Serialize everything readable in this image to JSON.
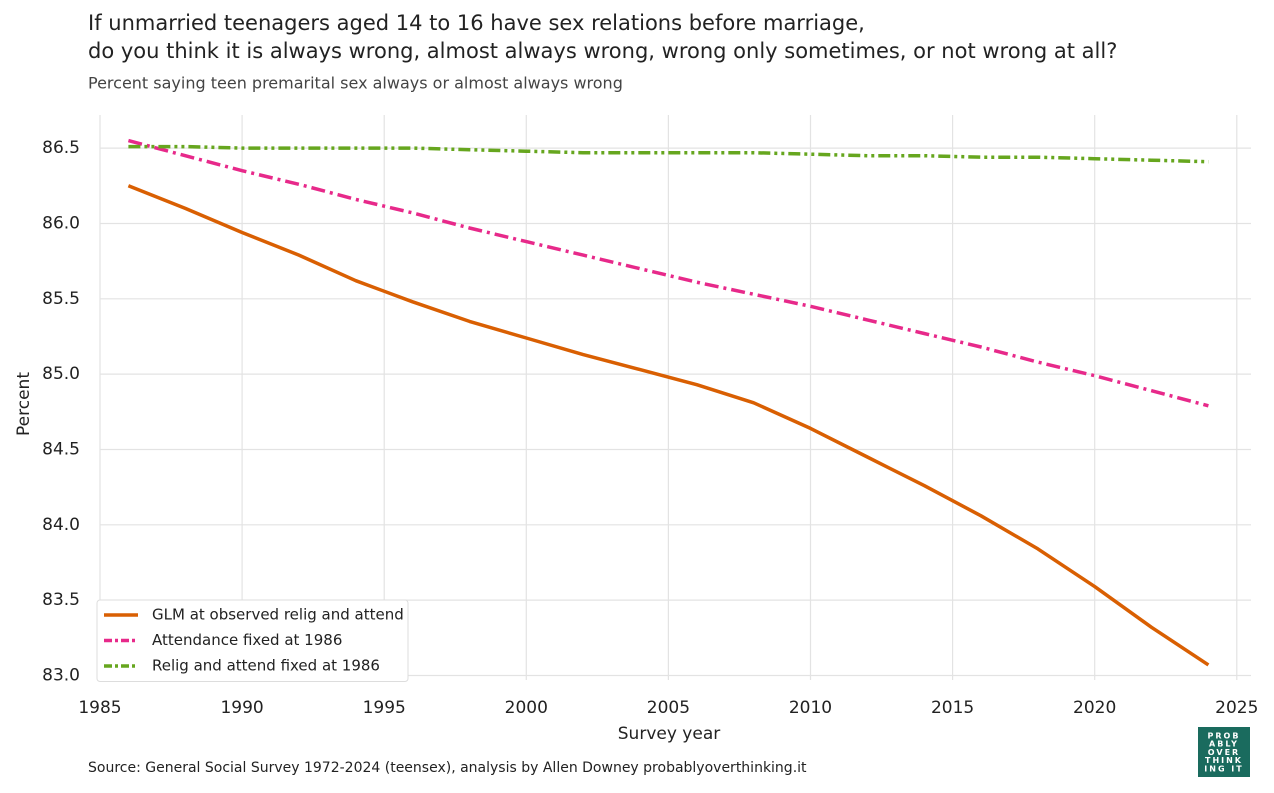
{
  "chart_data": {
    "type": "line",
    "title_lines": [
      "If unmarried teenagers aged 14 to 16 have sex relations before marriage,",
      "do you think it is always wrong, almost always wrong, wrong only sometimes, or not wrong at all?"
    ],
    "subtitle": "Percent saying teen premarital sex always or almost always wrong",
    "x_label": "Survey year",
    "y_label": "Percent",
    "source": "Source: General Social Survey 1972-2024 (teensex), analysis by Allen Downey probablyoverthinking.it",
    "logo_lines": [
      "PROB",
      "ABLY",
      "OVER",
      "THINK",
      "ING IT"
    ],
    "x": [
      1986,
      1988,
      1990,
      1992,
      1994,
      1996,
      1998,
      2000,
      2002,
      2004,
      2006,
      2008,
      2010,
      2012,
      2014,
      2016,
      2018,
      2020,
      2022,
      2024
    ],
    "series": [
      {
        "name": "GLM at observed relig and attend",
        "color": "#d95f02",
        "dash": "solid",
        "values": [
          86.25,
          86.1,
          85.94,
          85.79,
          85.62,
          85.48,
          85.35,
          85.24,
          85.13,
          85.03,
          84.93,
          84.81,
          84.64,
          84.45,
          84.26,
          84.06,
          83.84,
          83.59,
          83.32,
          83.07
        ]
      },
      {
        "name": "Attendance fixed at 1986",
        "color": "#e7298a",
        "dash": "dashdot",
        "values": [
          86.55,
          86.45,
          86.35,
          86.26,
          86.16,
          86.07,
          85.97,
          85.88,
          85.79,
          85.7,
          85.61,
          85.53,
          85.45,
          85.36,
          85.27,
          85.18,
          85.08,
          84.99,
          84.89,
          84.79
        ]
      },
      {
        "name": "Relig and attend fixed at 1986",
        "color": "#66a61e",
        "dash": "dashdotdot",
        "values": [
          86.51,
          86.51,
          86.5,
          86.5,
          86.5,
          86.5,
          86.49,
          86.48,
          86.47,
          86.47,
          86.47,
          86.47,
          86.46,
          86.45,
          86.45,
          86.44,
          86.44,
          86.43,
          86.42,
          86.41
        ]
      }
    ],
    "xlim": [
      1985,
      2025.5
    ],
    "ylim": [
      82.97,
      86.72
    ],
    "xticks": [
      1985,
      1990,
      1995,
      2000,
      2005,
      2010,
      2015,
      2020,
      2025
    ],
    "yticks": [
      {
        "value": 83,
        "label": "83.0"
      },
      83.5,
      {
        "value": 84,
        "label": "84.0"
      },
      84.5,
      {
        "value": 85,
        "label": "85.0"
      },
      85.5,
      {
        "value": 86,
        "label": "86.0"
      },
      86.5
    ],
    "grid": true,
    "legend": "lower-left"
  }
}
